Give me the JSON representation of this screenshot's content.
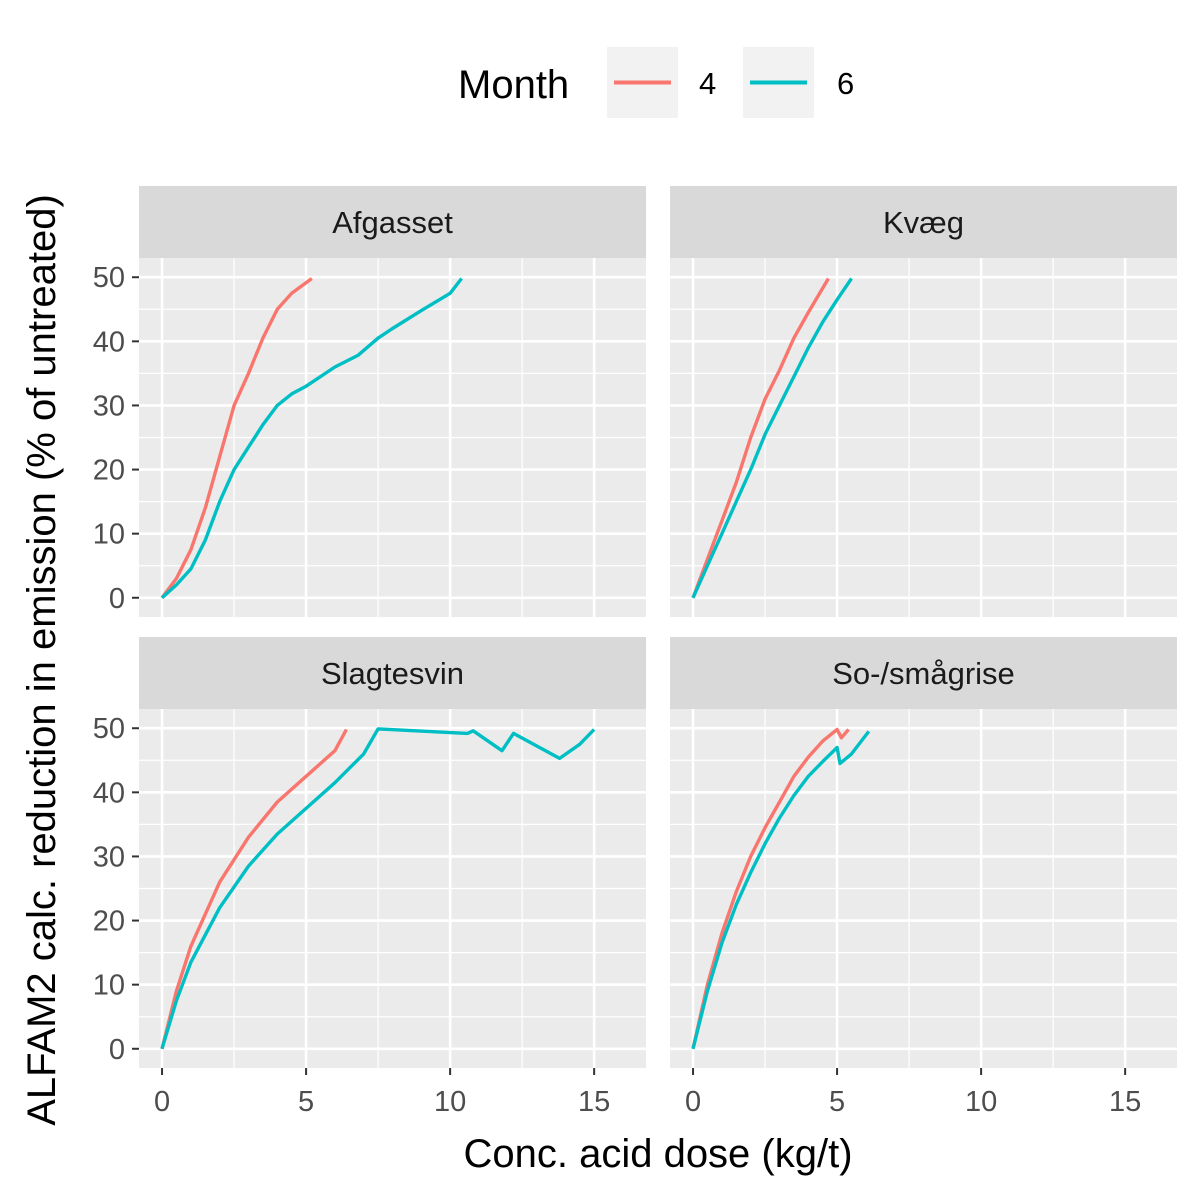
{
  "chart_data": {
    "type": "line",
    "xlabel": "Conc. acid dose (kg/t)",
    "ylabel": "ALFAM2 calc. reduction in emission (% of untreated)",
    "xlim": [
      -0.8,
      16.8
    ],
    "ylim": [
      -3,
      53
    ],
    "x_ticks": [
      0,
      5,
      10,
      15
    ],
    "y_ticks": [
      0,
      10,
      20,
      30,
      40,
      50
    ],
    "grid": true,
    "legend": {
      "title": "Month",
      "placement": "top",
      "entries": [
        {
          "label": "4",
          "color": "#F8766D"
        },
        {
          "label": "6",
          "color": "#00BFC4"
        }
      ]
    },
    "panels": [
      {
        "title": "Afgasset",
        "series": [
          {
            "name": "4",
            "color": "#F8766D",
            "points": [
              [
                0,
                0
              ],
              [
                0.5,
                3
              ],
              [
                1,
                7.5
              ],
              [
                1.5,
                14
              ],
              [
                2,
                22
              ],
              [
                2.5,
                30
              ],
              [
                3,
                35
              ],
              [
                3.5,
                40.5
              ],
              [
                4,
                45
              ],
              [
                4.5,
                47.5
              ],
              [
                5.2,
                49.8
              ]
            ]
          },
          {
            "name": "6",
            "color": "#00BFC4",
            "points": [
              [
                0,
                0
              ],
              [
                0.5,
                2
              ],
              [
                1,
                4.5
              ],
              [
                1.5,
                9
              ],
              [
                2,
                15
              ],
              [
                2.5,
                20
              ],
              [
                3,
                23.5
              ],
              [
                3.5,
                27
              ],
              [
                4,
                30
              ],
              [
                4.5,
                31.8
              ],
              [
                5,
                33
              ],
              [
                6,
                36
              ],
              [
                6.8,
                37.8
              ],
              [
                7.5,
                40.5
              ],
              [
                8,
                42
              ],
              [
                9,
                44.8
              ],
              [
                10,
                47.5
              ],
              [
                10.4,
                49.8
              ]
            ]
          }
        ]
      },
      {
        "title": "Kvæg",
        "series": [
          {
            "name": "4",
            "color": "#F8766D",
            "points": [
              [
                0,
                0
              ],
              [
                0.5,
                6
              ],
              [
                1,
                12
              ],
              [
                1.5,
                18
              ],
              [
                2,
                25
              ],
              [
                2.5,
                31
              ],
              [
                3,
                35.5
              ],
              [
                3.5,
                40.5
              ],
              [
                4,
                44.5
              ],
              [
                4.7,
                49.8
              ]
            ]
          },
          {
            "name": "6",
            "color": "#00BFC4",
            "points": [
              [
                0,
                0
              ],
              [
                0.5,
                5
              ],
              [
                1,
                10
              ],
              [
                1.5,
                15
              ],
              [
                2,
                20
              ],
              [
                2.5,
                25.5
              ],
              [
                3,
                30
              ],
              [
                3.5,
                34.5
              ],
              [
                4,
                39
              ],
              [
                4.5,
                43
              ],
              [
                5,
                46.5
              ],
              [
                5.5,
                49.8
              ]
            ]
          }
        ]
      },
      {
        "title": "Slagtesvin",
        "series": [
          {
            "name": "4",
            "color": "#F8766D",
            "points": [
              [
                0,
                0
              ],
              [
                0.5,
                9
              ],
              [
                1,
                16
              ],
              [
                2,
                26
              ],
              [
                3,
                33
              ],
              [
                4,
                38.5
              ],
              [
                5,
                42.5
              ],
              [
                6,
                46.5
              ],
              [
                6.4,
                49.8
              ]
            ]
          },
          {
            "name": "6",
            "color": "#00BFC4",
            "points": [
              [
                0,
                0
              ],
              [
                0.5,
                7.5
              ],
              [
                1,
                13.5
              ],
              [
                2,
                22
              ],
              [
                3,
                28.5
              ],
              [
                4,
                33.5
              ],
              [
                5,
                37.5
              ],
              [
                6,
                41.5
              ],
              [
                7,
                46
              ],
              [
                7.5,
                49.9
              ],
              [
                10.6,
                49.2
              ],
              [
                10.8,
                49.6
              ],
              [
                11.8,
                46.5
              ],
              [
                12.2,
                49.2
              ],
              [
                13.8,
                45.3
              ],
              [
                14.5,
                47.5
              ],
              [
                15,
                49.8
              ]
            ]
          }
        ]
      },
      {
        "title": "So-/smågrise",
        "series": [
          {
            "name": "4",
            "color": "#F8766D",
            "points": [
              [
                0,
                0
              ],
              [
                0.5,
                10
              ],
              [
                1,
                18
              ],
              [
                1.5,
                24.5
              ],
              [
                2,
                30
              ],
              [
                2.5,
                34.5
              ],
              [
                3,
                38.5
              ],
              [
                3.5,
                42.5
              ],
              [
                4,
                45.5
              ],
              [
                4.5,
                48
              ],
              [
                5,
                49.8
              ],
              [
                5.15,
                48.5
              ],
              [
                5.4,
                49.8
              ]
            ]
          },
          {
            "name": "6",
            "color": "#00BFC4",
            "points": [
              [
                0,
                0
              ],
              [
                0.5,
                9
              ],
              [
                1,
                16.5
              ],
              [
                1.5,
                22.5
              ],
              [
                2,
                27.5
              ],
              [
                2.5,
                32
              ],
              [
                3,
                36
              ],
              [
                3.5,
                39.5
              ],
              [
                4,
                42.5
              ],
              [
                4.5,
                44.8
              ],
              [
                5,
                47
              ],
              [
                5.1,
                44.5
              ],
              [
                5.5,
                46
              ],
              [
                6.1,
                49.5
              ]
            ]
          }
        ]
      }
    ]
  }
}
